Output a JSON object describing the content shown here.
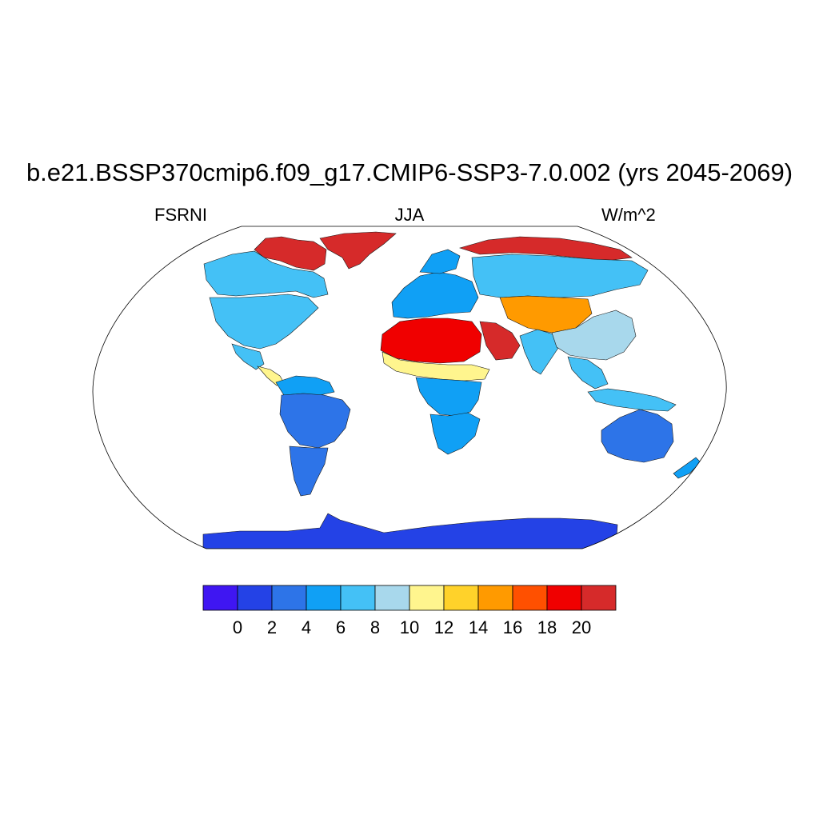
{
  "title": "b.e21.BSSP370cmip6.f09_g17.CMIP6-SSP3-7.0.002 (yrs 2045-2069)",
  "left_string": "FSRNI",
  "center_string": "JJA",
  "right_string": "W/m^2",
  "map": {
    "projection": "Robinson",
    "ocean_fill": "#ffffff",
    "border_color": "#000000",
    "regions": [
      {
        "name": "Greenland",
        "value": 21
      },
      {
        "name": "Arctic Canada coast",
        "value": 20
      },
      {
        "name": "Canada",
        "value": 7
      },
      {
        "name": "United States",
        "value": 6
      },
      {
        "name": "Mexico",
        "value": 7
      },
      {
        "name": "Central America",
        "value": 10
      },
      {
        "name": "South America north",
        "value": 5
      },
      {
        "name": "Amazon",
        "value": 3
      },
      {
        "name": "Southern South America",
        "value": 3
      },
      {
        "name": "Europe",
        "value": 5
      },
      {
        "name": "Scandinavia",
        "value": 5
      },
      {
        "name": "Russian Arctic coast",
        "value": 20
      },
      {
        "name": "Siberia",
        "value": 6
      },
      {
        "name": "Central Asia",
        "value": 14
      },
      {
        "name": "Sahara",
        "value": 19
      },
      {
        "name": "Arabian Peninsula",
        "value": 20
      },
      {
        "name": "Sahel",
        "value": 10
      },
      {
        "name": "Central Africa",
        "value": 5
      },
      {
        "name": "Southern Africa",
        "value": 4
      },
      {
        "name": "India",
        "value": 6
      },
      {
        "name": "China",
        "value": 8
      },
      {
        "name": "Southeast Asia",
        "value": 7
      },
      {
        "name": "Indonesia",
        "value": 6
      },
      {
        "name": "Australia",
        "value": 3
      },
      {
        "name": "New Zealand",
        "value": 5
      },
      {
        "name": "Antarctica",
        "value": 1
      }
    ]
  },
  "colorbar": {
    "labels": [
      "0",
      "2",
      "4",
      "6",
      "8",
      "10",
      "12",
      "14",
      "16",
      "18",
      "20"
    ],
    "colors": [
      "#3f16f2",
      "#2442e6",
      "#2d74e8",
      "#10a0f5",
      "#44c1f6",
      "#a8d8ec",
      "#fff58e",
      "#ffd22a",
      "#ff9a00",
      "#ff5000",
      "#f00000",
      "#d62a2a"
    ]
  }
}
